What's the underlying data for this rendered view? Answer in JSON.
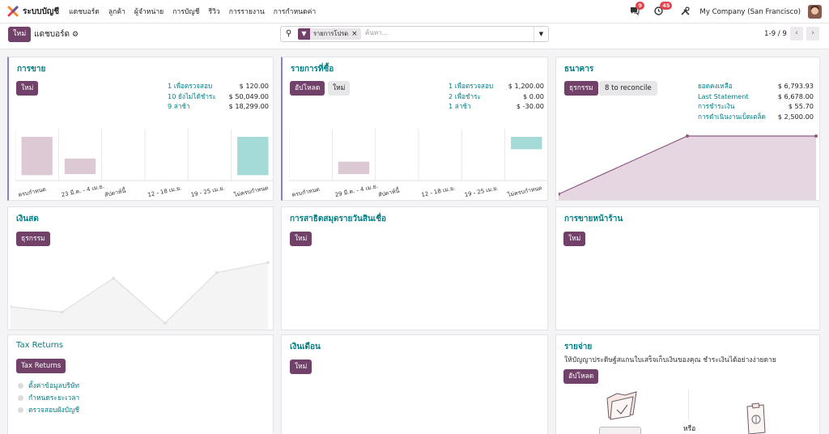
{
  "app": {
    "name": "ระบบบัญชี",
    "menu": [
      "แดชบอร์ด",
      "ลูกค้า",
      "ผู้จำหน่าย",
      "การบัญชี",
      "รีวิว",
      "การรายงาน",
      "การกำหนดค่า"
    ],
    "messages_badge": "9",
    "activities_badge": "45",
    "company": "My Company (San Francisco)"
  },
  "control": {
    "new_label": "ใหม่",
    "breadcrumb": "แดชบอร์ด",
    "filter_facet": "รายการโปรด",
    "search_placeholder": "ค้นหา...",
    "pager": "1-9 / 9"
  },
  "cards": {
    "sales": {
      "title": "การขาย",
      "new_label": "ใหม่",
      "stats": [
        {
          "label": "1 เพื่อตรวจสอบ",
          "value": "$ 120.00"
        },
        {
          "label": "10 ยังไม่ได้ชำระ",
          "value": "$ 50,049.00"
        },
        {
          "label": "9 ล่าช้า",
          "value": "$ 18,299.00"
        }
      ]
    },
    "purchases": {
      "title": "รายการที่ซื้อ",
      "upload_label": "อัปโหลด",
      "new_label": "ใหม่",
      "stats": [
        {
          "label": "1 เพื่อตรวจสอบ",
          "value": "$ 1,200.00"
        },
        {
          "label": "2 เพื่อชำระ",
          "value": "$ 0.00"
        },
        {
          "label": "1 ล่าช้า",
          "value": "$ -30.00"
        }
      ]
    },
    "bank": {
      "title": "ธนาคาร",
      "txn_label": "ธุรกรรม",
      "reconcile_label": "8 to reconcile",
      "stats": [
        {
          "label": "ยอดคงเหลือ",
          "value": "$ 6,793.93"
        },
        {
          "label": "Last Statement",
          "value": "$ 6,678.00"
        },
        {
          "label": "การชำระเงิน",
          "value": "$ 55.70"
        },
        {
          "label": "การดำเนินงานเบ็ดเตล็ด",
          "value": "$ 2,500.00"
        }
      ]
    },
    "cash": {
      "title": "เงินสด",
      "txn_label": "ธุรกรรม"
    },
    "credit_sales": {
      "title": "การสาธิตสมุดรายวันสินเชื่อ",
      "new_label": "ใหม่"
    },
    "pos": {
      "title": "การขายหน้าร้าน",
      "new_label": "ใหม่"
    },
    "tax": {
      "title": "Tax Returns",
      "btn_label": "Tax Returns",
      "links": [
        "ตั้งค่าข้อมูลบริษัท",
        "กำหนดระยะเวลา",
        "ตรวจสอบผังบัญชี"
      ]
    },
    "salary": {
      "title": "เงินเดือน",
      "new_label": "ใหม่"
    },
    "expenses": {
      "title": "รายจ่าย",
      "description": "ให้บัญญาประดิษฐ์สแกนใบเสร็จเก็บเงินของคุณ ชำระเงินได้อย่างง่ายดาย",
      "upload_label": "อัปโหลด",
      "or_text": "หรือ"
    }
  },
  "chart_data": [
    {
      "type": "bar",
      "categories": [
        "ครบกำหนด",
        "23 มี.ค. - 4 เม.ย.",
        "สัปดาห์นี้",
        "12 - 18 เม.ย.",
        "19 - 25 เม.ย.",
        "ไม่ครบกำหนด"
      ],
      "values": [
        3700,
        1500,
        0,
        0,
        0,
        3700
      ],
      "colors": [
        "#ddc9d4",
        "#ddc9d4",
        "#ddc9d4",
        "#ddc9d4",
        "#ddc9d4",
        "#a4dad7"
      ]
    },
    {
      "type": "bar",
      "categories": [
        "ครบกำหนด",
        "29 มี.ค. - 4 เม.ย.",
        "สัปดาห์นี้",
        "12 - 18 เม.ย.",
        "19 - 25 เม.ย.",
        "ไม่ครบกำหนด"
      ],
      "values": [
        0,
        1200,
        0,
        0,
        0,
        1200
      ],
      "colors": [
        "#ddc9d4",
        "#ddc9d4",
        "#ddc9d4",
        "#ddc9d4",
        "#ddc9d4",
        "#a4dad7"
      ]
    },
    {
      "type": "area",
      "values": [
        8,
        100,
        100
      ],
      "color": "#71416a"
    },
    {
      "type": "area",
      "values": [
        30,
        22,
        72,
        6,
        80,
        95
      ],
      "color": "#e0dede"
    }
  ]
}
